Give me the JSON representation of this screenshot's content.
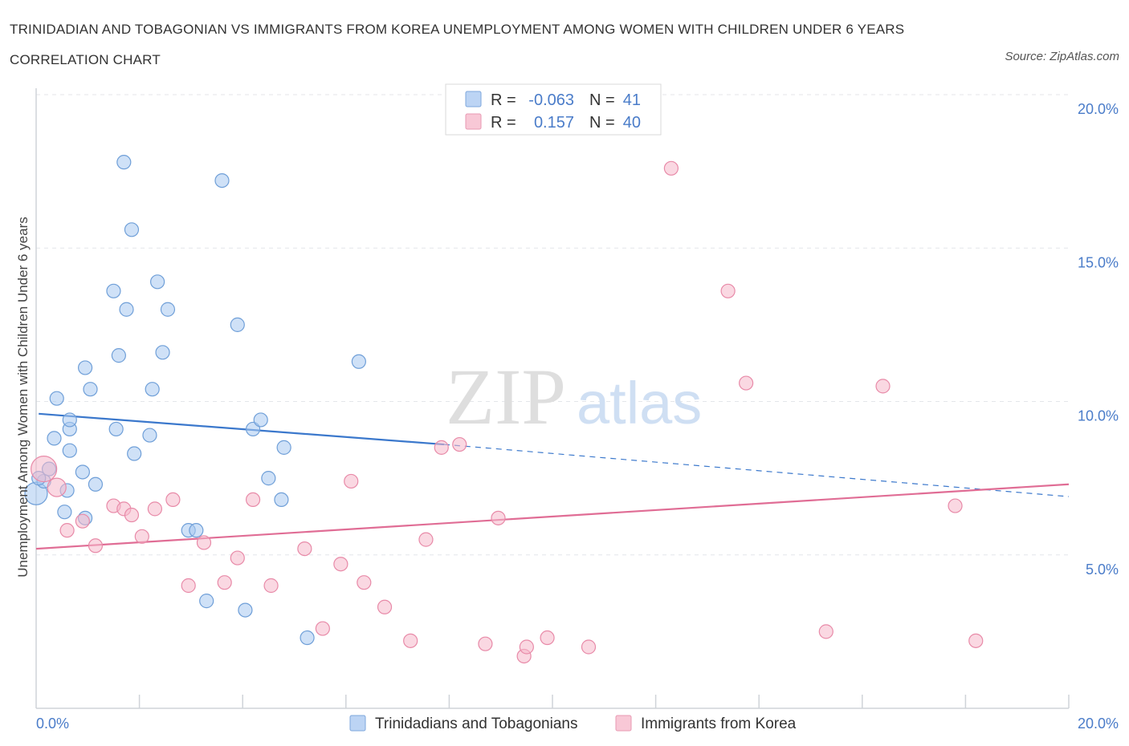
{
  "title": "TRINIDADIAN AND TOBAGONIAN VS IMMIGRANTS FROM KOREA UNEMPLOYMENT AMONG WOMEN WITH CHILDREN UNDER 6 YEARS CORRELATION CHART",
  "source": "Source: ZipAtlas.com",
  "watermark": {
    "zip": "ZIP",
    "atlas": "atlas"
  },
  "legend_box": {
    "rows": [
      {
        "r_label": "R =",
        "r_value": "-0.063",
        "n_label": "N =",
        "n_value": "41",
        "color": "#a8c8f0"
      },
      {
        "r_label": "R =",
        "r_value": "0.157",
        "n_label": "N =",
        "n_value": "40",
        "color": "#f5b8cb"
      }
    ]
  },
  "chart_data": {
    "type": "scatter",
    "xlabel": "",
    "ylabel": "Unemployment Among Women with Children Under 6 years",
    "xlim": [
      0,
      20
    ],
    "ylim": [
      0,
      20
    ],
    "x_ticks": [
      "0.0%",
      "20.0%"
    ],
    "y_ticks": [
      {
        "value": 5,
        "label": "5.0%"
      },
      {
        "value": 10,
        "label": "10.0%"
      },
      {
        "value": 15,
        "label": "15.0%"
      },
      {
        "value": 20,
        "label": "20.0%"
      }
    ],
    "grid": true,
    "legend": "bottom-center",
    "series": [
      {
        "name": "Trinidadians and Tobagonians",
        "color": "#a8c8f0",
        "stroke": "#6f9fd8",
        "line_color": "#3b78cc",
        "trend": {
          "x0": 0.05,
          "y0": 9.6,
          "x1": 7.9,
          "y1": 8.6,
          "x_dash_end": 20,
          "y_dash_end": 6.9
        },
        "points": [
          [
            0,
            7.0
          ],
          [
            0.15,
            7.4
          ],
          [
            0.25,
            7.8
          ],
          [
            0.35,
            8.8
          ],
          [
            0.4,
            10.1
          ],
          [
            0.55,
            6.4
          ],
          [
            0.6,
            7.1
          ],
          [
            0.65,
            9.1
          ],
          [
            0.65,
            8.4
          ],
          [
            0.65,
            9.4
          ],
          [
            0.9,
            7.7
          ],
          [
            0.95,
            6.2
          ],
          [
            0.95,
            11.1
          ],
          [
            1.05,
            10.4
          ],
          [
            1.15,
            7.3
          ],
          [
            1.5,
            13.6
          ],
          [
            1.55,
            9.1
          ],
          [
            1.6,
            11.5
          ],
          [
            1.7,
            17.8
          ],
          [
            1.75,
            13.0
          ],
          [
            1.85,
            15.6
          ],
          [
            1.9,
            8.3
          ],
          [
            2.2,
            8.9
          ],
          [
            2.25,
            10.4
          ],
          [
            2.35,
            13.9
          ],
          [
            2.45,
            11.6
          ],
          [
            2.55,
            13.0
          ],
          [
            2.95,
            5.8
          ],
          [
            3.1,
            5.8
          ],
          [
            3.3,
            3.5
          ],
          [
            3.6,
            17.2
          ],
          [
            3.9,
            12.5
          ],
          [
            4.05,
            3.2
          ],
          [
            4.2,
            9.1
          ],
          [
            4.35,
            9.4
          ],
          [
            4.5,
            7.5
          ],
          [
            4.75,
            6.8
          ],
          [
            4.8,
            8.5
          ],
          [
            5.25,
            2.3
          ],
          [
            6.25,
            11.3
          ],
          [
            0.05,
            7.5
          ]
        ]
      },
      {
        "name": "Immigrants from Korea",
        "color": "#f5b8cb",
        "stroke": "#e88aa8",
        "line_color": "#e06d95",
        "trend": {
          "x0": 0,
          "y0": 5.2,
          "x1": 20,
          "y1": 7.3
        },
        "points": [
          [
            0.15,
            7.8
          ],
          [
            0.4,
            7.2
          ],
          [
            0.6,
            5.8
          ],
          [
            0.9,
            6.1
          ],
          [
            1.15,
            5.3
          ],
          [
            1.5,
            6.6
          ],
          [
            1.7,
            6.5
          ],
          [
            1.85,
            6.3
          ],
          [
            2.05,
            5.6
          ],
          [
            2.3,
            6.5
          ],
          [
            2.65,
            6.8
          ],
          [
            2.95,
            4.0
          ],
          [
            3.25,
            5.4
          ],
          [
            3.65,
            4.1
          ],
          [
            3.9,
            4.9
          ],
          [
            4.2,
            6.8
          ],
          [
            4.55,
            4.0
          ],
          [
            5.2,
            5.2
          ],
          [
            5.55,
            2.6
          ],
          [
            5.9,
            4.7
          ],
          [
            6.1,
            7.4
          ],
          [
            6.35,
            4.1
          ],
          [
            6.75,
            3.3
          ],
          [
            7.25,
            2.2
          ],
          [
            7.55,
            5.5
          ],
          [
            7.85,
            8.5
          ],
          [
            8.2,
            8.6
          ],
          [
            8.7,
            2.1
          ],
          [
            8.95,
            6.2
          ],
          [
            9.45,
            1.7
          ],
          [
            9.5,
            2.0
          ],
          [
            9.9,
            2.3
          ],
          [
            10.7,
            2.0
          ],
          [
            12.3,
            17.6
          ],
          [
            13.4,
            13.6
          ],
          [
            13.75,
            10.6
          ],
          [
            15.3,
            2.5
          ],
          [
            16.4,
            10.5
          ],
          [
            17.8,
            6.6
          ],
          [
            18.2,
            2.2
          ]
        ]
      }
    ]
  }
}
